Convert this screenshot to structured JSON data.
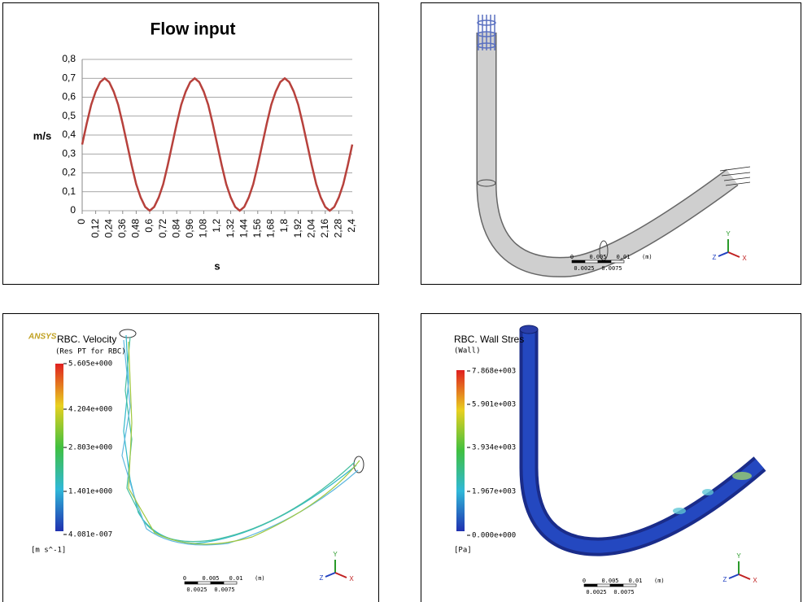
{
  "chart_data": {
    "type": "line",
    "title": "Flow input",
    "ylabel": "m/s",
    "xlabel": "s",
    "color": "#b7413c",
    "grid": true,
    "x": [
      0,
      0.04,
      0.08,
      0.12,
      0.16,
      0.2,
      0.24,
      0.28,
      0.32,
      0.36,
      0.4,
      0.44,
      0.48,
      0.52,
      0.56,
      0.6,
      0.64,
      0.68,
      0.72,
      0.76,
      0.8,
      0.84,
      0.88,
      0.92,
      0.96,
      1,
      1.04,
      1.08,
      1.12,
      1.16,
      1.2,
      1.24,
      1.28,
      1.32,
      1.36,
      1.4,
      1.44,
      1.48,
      1.52,
      1.56,
      1.6,
      1.64,
      1.68,
      1.72,
      1.76,
      1.8,
      1.84,
      1.88,
      1.92,
      1.96,
      2,
      2.04,
      2.08,
      2.12,
      2.16,
      2.2,
      2.24,
      2.28,
      2.32,
      2.36,
      2.4
    ],
    "values": [
      0.35,
      0.46,
      0.56,
      0.63,
      0.68,
      0.7,
      0.68,
      0.63,
      0.56,
      0.46,
      0.35,
      0.24,
      0.14,
      0.07,
      0.02,
      0,
      0.02,
      0.07,
      0.14,
      0.24,
      0.35,
      0.46,
      0.56,
      0.63,
      0.68,
      0.7,
      0.68,
      0.63,
      0.56,
      0.46,
      0.35,
      0.24,
      0.14,
      0.07,
      0.02,
      0,
      0.02,
      0.07,
      0.14,
      0.24,
      0.35,
      0.46,
      0.56,
      0.63,
      0.68,
      0.7,
      0.68,
      0.63,
      0.56,
      0.46,
      0.35,
      0.24,
      0.14,
      0.07,
      0.02,
      0,
      0.02,
      0.07,
      0.14,
      0.24,
      0.35
    ],
    "xlim": [
      0,
      2.4
    ],
    "xticks": [
      0,
      {
        "value": 0.12,
        "label": "0,12"
      },
      {
        "value": 0.24,
        "label": "0,24"
      },
      {
        "value": 0.36,
        "label": "0,36"
      },
      {
        "value": 0.48,
        "label": "0,48"
      },
      {
        "value": 0.6,
        "label": "0,6"
      },
      {
        "value": 0.72,
        "label": "0,72"
      },
      {
        "value": 0.84,
        "label": "0,84"
      },
      {
        "value": 0.96,
        "label": "0,96"
      },
      {
        "value": 1.08,
        "label": "1,08"
      },
      {
        "value": 1.2,
        "label": "1,2"
      },
      {
        "value": 1.32,
        "label": "1,32"
      },
      {
        "value": 1.44,
        "label": "1,44"
      },
      {
        "value": 1.56,
        "label": "1,56"
      },
      {
        "value": 1.68,
        "label": "1,68"
      },
      {
        "value": 1.8,
        "label": "1,8"
      },
      {
        "value": 1.92,
        "label": "1,92"
      },
      {
        "value": 2.04,
        "label": "2,04"
      },
      {
        "value": 2.16,
        "label": "2,16"
      },
      {
        "value": 2.28,
        "label": "2,28"
      },
      {
        "value": 2.4,
        "label": "2,4"
      }
    ],
    "ylim": [
      0,
      0.8
    ],
    "yticks": [
      0,
      {
        "value": 0.1,
        "label": "0,1"
      },
      {
        "value": 0.2,
        "label": "0,2"
      },
      {
        "value": 0.3,
        "label": "0,3"
      },
      {
        "value": 0.4,
        "label": "0,4"
      },
      {
        "value": 0.5,
        "label": "0,5"
      },
      {
        "value": 0.6,
        "label": "0,6"
      },
      {
        "value": 0.7,
        "label": "0,7"
      },
      {
        "value": 0.8,
        "label": "0,8"
      }
    ]
  },
  "panels": {
    "geometry": {
      "scale": [
        "0",
        "0.005",
        "0.01",
        "(m)",
        "0.0025",
        "0.0075"
      ],
      "axes": [
        "Y",
        "Z",
        "X"
      ]
    },
    "velocity": {
      "logo": "ANSYS",
      "title": "RBC. Velocity",
      "subtitle": "(Res PT for RBC)",
      "legend": [
        "5.605e+000",
        "4.204e+000",
        "2.803e+000",
        "1.401e+000",
        "4.081e-007"
      ],
      "unit": "[m s^-1]",
      "scale": [
        "0",
        "0.005",
        "0.01",
        "(m)",
        "0.0025",
        "0.0075"
      ],
      "axes": [
        "Y",
        "Z",
        "X"
      ]
    },
    "wall_stress": {
      "title": "RBC. Wall Stres",
      "subtitle": "(Wall)",
      "legend": [
        "7.868e+003",
        "5.901e+003",
        "3.934e+003",
        "1.967e+003",
        "0.000e+000"
      ],
      "unit": "[Pa]",
      "scale": [
        "0",
        "0.005",
        "0.01",
        "(m)",
        "0.0025",
        "0.0075"
      ],
      "axes": [
        "Y",
        "Z",
        "X"
      ]
    }
  }
}
